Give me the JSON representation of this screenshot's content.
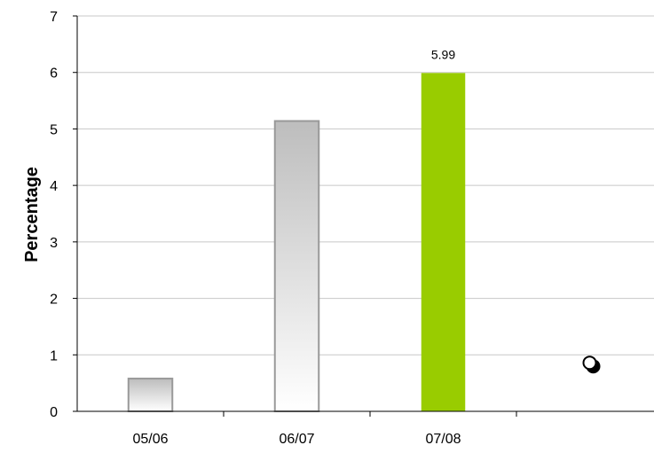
{
  "chart_data": {
    "type": "bar",
    "categories": [
      "05/06",
      "06/07",
      "07/08",
      ""
    ],
    "values": [
      0.58,
      5.14,
      5.99,
      null
    ],
    "data_labels": [
      "",
      "",
      "5.99",
      ""
    ],
    "highlight_color": "#99cc00",
    "bar_style": "grey-gradient",
    "marker_point": {
      "category_index": 3,
      "value": 0.86,
      "description": "black-and-white dot marker"
    },
    "title": "",
    "xlabel": "",
    "ylabel": "Percentage",
    "ylim": [
      0,
      7
    ],
    "y_ticks": [
      0,
      1,
      2,
      3,
      4,
      5,
      6,
      7
    ],
    "grid": true,
    "legend": "none"
  }
}
